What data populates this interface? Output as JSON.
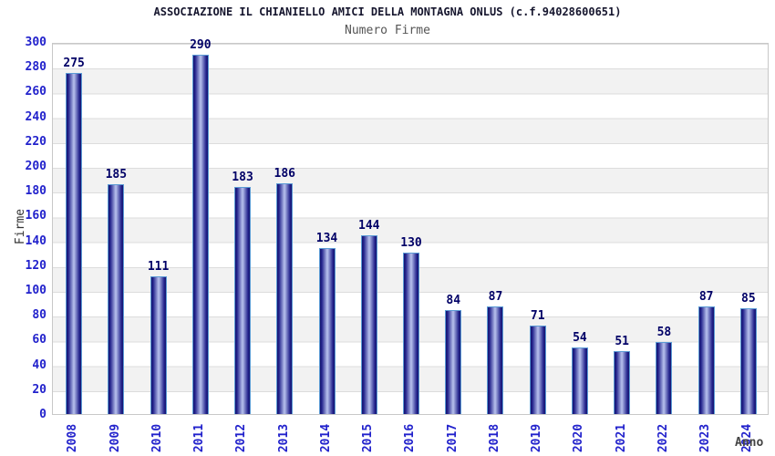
{
  "chart_data": {
    "type": "bar",
    "title": "ASSOCIAZIONE IL CHIANIELLO AMICI DELLA MONTAGNA ONLUS (c.f.94028600651)",
    "subtitle": "Numero Firme",
    "xlabel": "Anno",
    "ylabel": "Firme",
    "categories": [
      "2008",
      "2009",
      "2010",
      "2011",
      "2012",
      "2013",
      "2014",
      "2015",
      "2016",
      "2017",
      "2018",
      "2019",
      "2020",
      "2021",
      "2022",
      "2023",
      "2024"
    ],
    "values": [
      275,
      185,
      111,
      290,
      183,
      186,
      134,
      144,
      130,
      84,
      87,
      71,
      54,
      51,
      58,
      87,
      85
    ],
    "ylim": [
      0,
      300
    ],
    "ytick_step": 20,
    "grid": "horizontal-bands",
    "legend": "none",
    "colors": {
      "bar_edge_dark": "#15156e",
      "bar_center_light": "#b8c0ee",
      "bar_border": "#5b9bd5",
      "axis_tick_label": "#2222cc",
      "value_label": "#000066",
      "band_gray": "#f2f2f2",
      "gridline": "#dcdcdc",
      "plot_border": "#c8c8c8",
      "title_color": "#16162e",
      "subtitle_color": "#555555",
      "axis_title_color": "#333333"
    }
  }
}
